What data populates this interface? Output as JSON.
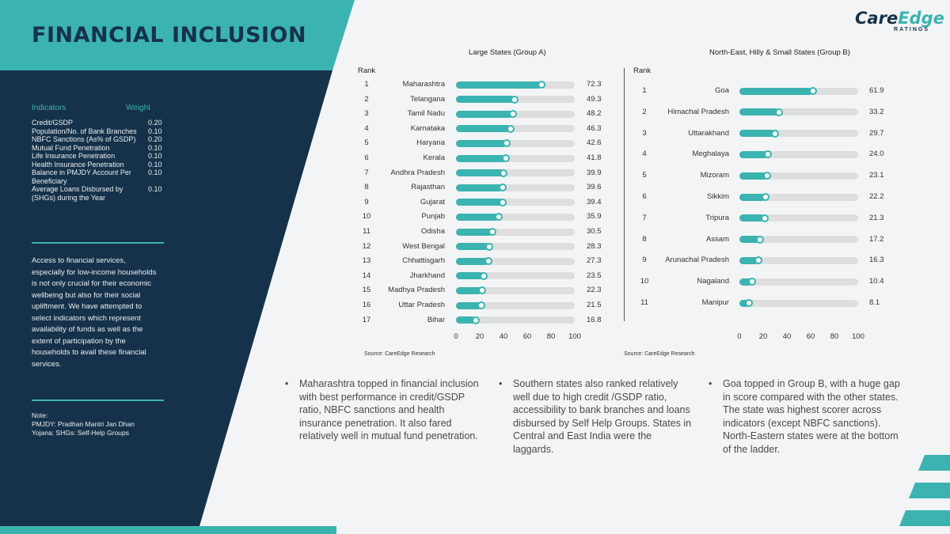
{
  "page": {
    "title": "FINANCIAL INCLUSION",
    "logo": {
      "brand_a": "Care",
      "brand_b": "Edge",
      "sub": "RATINGS"
    }
  },
  "indicators": {
    "header_name": "Indicators",
    "header_weight": "Weight",
    "rows": [
      {
        "name": "Credit/GSDP",
        "weight": "0.20"
      },
      {
        "name": "Population/No. of Bank Branches",
        "weight": "0.10"
      },
      {
        "name": "NBFC Sanctions (As% of GSDP)",
        "weight": "0.20"
      },
      {
        "name": "Mutual Fund Penetration",
        "weight": "0.10"
      },
      {
        "name": "Life Insurance Penetration",
        "weight": "0.10"
      },
      {
        "name": "Health Insurance Penetration",
        "weight": "0.10"
      },
      {
        "name": "Balance in PMJDY Account Per Beneficiary",
        "weight": "0.10"
      },
      {
        "name": "Average Loans Disbursed by (SHGs) during the Year",
        "weight": "0.10"
      }
    ],
    "description": "Access to financial services, especially for low-income households is not only crucial for their economic wellbeing but also for their social upliftment. We have attempted to select indicators which represent availability of funds as well as the extent of participation by the households to avail these financial services.",
    "note_title": "Note:",
    "note_body": "PMJDY: Pradhan Mantri Jan Dhan Yojana; SHGs: Self-Help Groups"
  },
  "chart_data": [
    {
      "type": "bar",
      "title": "Large States (Group A)",
      "rank_label": "Rank",
      "categories": [
        "Maharashtra",
        "Telangana",
        "Tamil Nadu",
        "Karnataka",
        "Haryana",
        "Kerala",
        "Andhra Pradesh",
        "Rajasthan",
        "Gujarat",
        "Punjab",
        "Odisha",
        "West Bengal",
        "Chhattisgarh",
        "Jharkhand",
        "Madhya Pradesh",
        "Uttar Pradesh",
        "Bihar"
      ],
      "ranks": [
        "1",
        "2",
        "3",
        "4",
        "5",
        "6",
        "7",
        "8",
        "9",
        "10",
        "11",
        "12",
        "13",
        "14",
        "15",
        "16",
        "17"
      ],
      "values": [
        72.3,
        49.3,
        48.2,
        46.3,
        42.6,
        41.8,
        39.9,
        39.6,
        39.4,
        35.9,
        30.5,
        28.3,
        27.3,
        23.5,
        22.3,
        21.5,
        16.8
      ],
      "value_labels": [
        "72.3",
        "49.3",
        "48.2",
        "46.3",
        "42.6",
        "41.8",
        "39.9",
        "39.6",
        "39.4",
        "35.9",
        "30.5",
        "28.3",
        "27.3",
        "23.5",
        "22.3",
        "21.5",
        "16.8"
      ],
      "xlim": [
        0,
        100
      ],
      "xticks": [
        "0",
        "20",
        "40",
        "60",
        "80",
        "100"
      ],
      "source": "Source: CareEdge Research",
      "orientation": "horizontal",
      "color": "#3bb3b1"
    },
    {
      "type": "bar",
      "title": "North-East, Hilly & Small States (Group B)",
      "rank_label": "Rank",
      "categories": [
        "Goa",
        "Himachal Pradesh",
        "Uttarakhand",
        "Meghalaya",
        "Mizoram",
        "Sikkim",
        "Tripura",
        "Assam",
        "Arunachal Pradesh",
        "Nagaland",
        "Manipur"
      ],
      "ranks": [
        "1",
        "2",
        "3",
        "4",
        "5",
        "6",
        "7",
        "8",
        "9",
        "10",
        "11"
      ],
      "values": [
        61.9,
        33.2,
        29.7,
        24.0,
        23.1,
        22.2,
        21.3,
        17.2,
        16.3,
        10.4,
        8.1
      ],
      "value_labels": [
        "61.9",
        "33.2",
        "29.7",
        "24.0",
        "23.1",
        "22.2",
        "21.3",
        "17.2",
        "16.3",
        "10.4",
        "8.1"
      ],
      "xlim": [
        0,
        100
      ],
      "xticks": [
        "0",
        "20",
        "40",
        "60",
        "80",
        "100"
      ],
      "source": "Source: CareEdge Research",
      "orientation": "horizontal",
      "color": "#3bb3b1"
    }
  ],
  "bullets": [
    {
      "mark": "•",
      "text": "Maharashtra topped in financial inclusion with best performance in credit/GSDP ratio, NBFC sanctions and health insurance penetration. It also fared relatively well in mutual fund penetration."
    },
    {
      "mark": "•",
      "text": "Southern states also ranked relatively well due to high credit /GSDP ratio, accessibility to bank branches and loans disbursed by Self Help Groups. States in Central and East India were the laggards."
    },
    {
      "mark": "•",
      "text": "Goa topped in Group B, with a huge gap in score compared with the other states. The state was highest scorer across indicators (except NBFC sanctions). North-Eastern states were at the bottom of the ladder."
    }
  ],
  "colors": {
    "teal": "#3bb3b1",
    "navy": "#16324a",
    "track": "#dedede"
  }
}
